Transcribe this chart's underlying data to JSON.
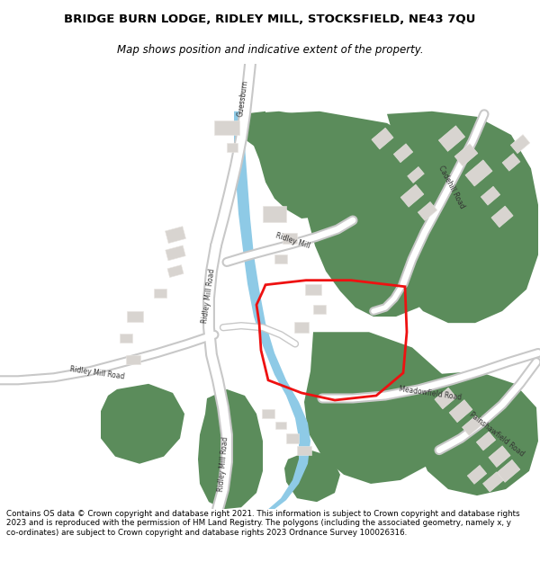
{
  "title_line1": "BRIDGE BURN LODGE, RIDLEY MILL, STOCKSFIELD, NE43 7QU",
  "title_line2": "Map shows position and indicative extent of the property.",
  "copyright_text": "Contains OS data © Crown copyright and database right 2021. This information is subject to Crown copyright and database rights 2023 and is reproduced with the permission of HM Land Registry. The polygons (including the associated geometry, namely x, y co-ordinates) are subject to Crown copyright and database rights 2023 Ordnance Survey 100026316.",
  "bg_color": "#ffffff",
  "map_bg": "#f5f3f0",
  "green_color": "#5b8c5b",
  "blue_color": "#8ecae6",
  "road_outer": "#c8c8c8",
  "road_inner": "#ffffff",
  "building_color": "#d8d4d0",
  "red_color": "#ee1111",
  "title_fontsize": 9.5,
  "subtitle_fontsize": 8.5,
  "copyright_fontsize": 6.3,
  "label_fontsize": 5.5,
  "label_color": "#333333"
}
